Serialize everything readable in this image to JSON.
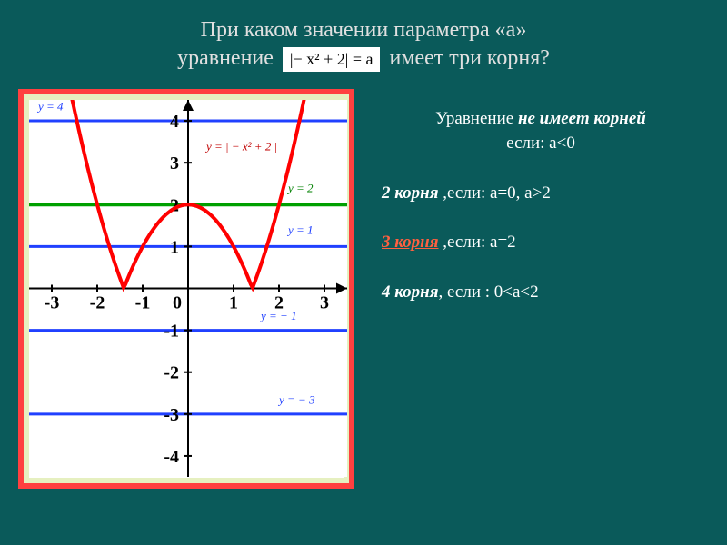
{
  "title": {
    "line1": "При каком значении параметра «а»",
    "line2_before": "уравнение",
    "equation": "|− x² + 2| = a",
    "line2_after": "имеет три корня?"
  },
  "chart": {
    "type": "line",
    "background_color": "#ffffff",
    "frame_color": "#ff4040",
    "inner_bg": "#e6f0c0",
    "xlim": [
      -3.5,
      3.5
    ],
    "ylim": [
      -4.5,
      4.5
    ],
    "xtick_positions": [
      -3,
      -2,
      -1,
      0,
      1,
      2,
      3
    ],
    "ytick_positions": [
      -4,
      -3,
      -2,
      -1,
      1,
      2,
      3,
      4
    ],
    "axis_color": "#000000",
    "axis_width": 2,
    "tick_font_size": 20,
    "tick_font_weight": "bold",
    "tick_color": "#000000",
    "curve": {
      "label": "y = | − x² + 2 |",
      "color": "#ff0000",
      "width": 4,
      "label_color": "#c00000",
      "label_pos": [
        0.4,
        3.3
      ]
    },
    "horizontal_lines": [
      {
        "y": 4,
        "color": "#2040ff",
        "width": 3,
        "label": "y = 4",
        "label_pos": [
          -3.3,
          4.25
        ],
        "label_color": "#2040ff"
      },
      {
        "y": 2,
        "color": "#00a000",
        "width": 4,
        "label": "y = 2",
        "label_pos": [
          2.2,
          2.3
        ],
        "label_color": "#008000"
      },
      {
        "y": 1,
        "color": "#2040ff",
        "width": 3,
        "label": "y = 1",
        "label_pos": [
          2.2,
          1.3
        ],
        "label_color": "#2040ff"
      },
      {
        "y": -1,
        "color": "#2040ff",
        "width": 3,
        "label": "y = − 1",
        "label_pos": [
          1.6,
          -0.75
        ],
        "label_color": "#2040ff"
      },
      {
        "y": -3,
        "color": "#2040ff",
        "width": 3,
        "label": "y = − 3",
        "label_pos": [
          2.0,
          -2.75
        ],
        "label_color": "#2040ff"
      }
    ]
  },
  "answers": {
    "no_roots": {
      "prefix": "Уравнение ",
      "emph": "не имеет корней",
      "cond": "если: a<0"
    },
    "two_roots": {
      "emph": "2 корня ",
      "cond": ",если:   a=0, a>2"
    },
    "three_roots": {
      "emph": "3 корня",
      "cond": " ,если:   a=2"
    },
    "four_roots": {
      "emph": "4 корня",
      "cond": ", если :    0<a<2"
    }
  }
}
